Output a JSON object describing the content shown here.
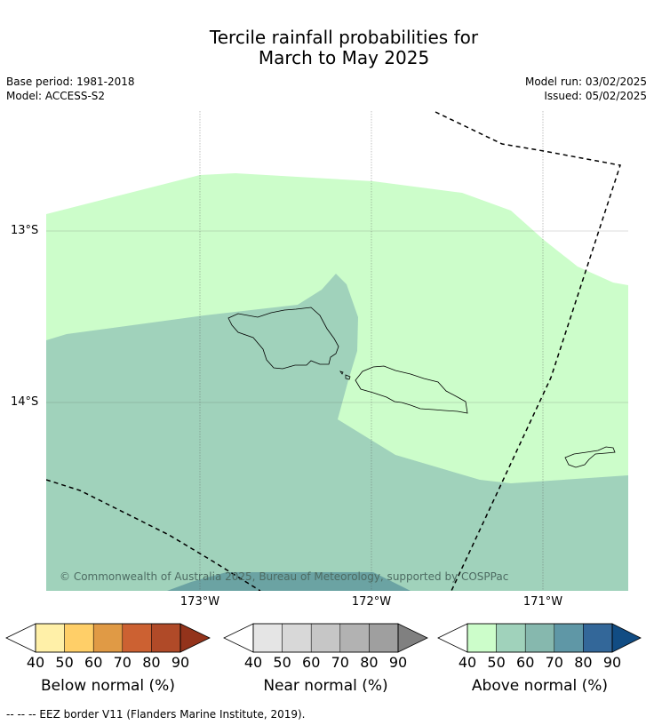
{
  "title_line1": "Tercile rainfall probabilities for",
  "title_line2": "March to May 2025",
  "base_period": "Base period: 1981-2018",
  "model": "Model: ACCESS-S2",
  "model_run": "Model run: 03/02/2025",
  "issued": "Issued: 05/02/2025",
  "latitude_labels": [
    "13°S",
    "14°S"
  ],
  "longitude_labels": [
    "173°W",
    "172°W",
    "171°W"
  ],
  "copyright": "© Commonwealth of Australia 2025, Bureau of Meteorology, supported by COSPPac",
  "legends": [
    {
      "title": "Below normal (%)",
      "ticks": [
        "40",
        "50",
        "60",
        "70",
        "80",
        "90"
      ],
      "colors": [
        "#ffffff",
        "#fff0a8",
        "#ffcf68",
        "#e09a45",
        "#cc6132",
        "#b04a28",
        "#93331b"
      ]
    },
    {
      "title": "Near normal (%)",
      "ticks": [
        "40",
        "50",
        "60",
        "70",
        "80",
        "90"
      ],
      "colors": [
        "#ffffff",
        "#e5e5e5",
        "#d8d8d8",
        "#c6c6c6",
        "#b2b2b2",
        "#9f9f9f",
        "#808080"
      ]
    },
    {
      "title": "Above normal (%)",
      "ticks": [
        "40",
        "50",
        "60",
        "70",
        "80",
        "90"
      ],
      "colors": [
        "#ffffff",
        "#ccfdca",
        "#a0d2bb",
        "#86b8ae",
        "#5f97a6",
        "#336799",
        "#114c83"
      ]
    }
  ],
  "footnote": "--  --  -- EEZ border V11 (Flanders Marine Institute, 2019)."
}
